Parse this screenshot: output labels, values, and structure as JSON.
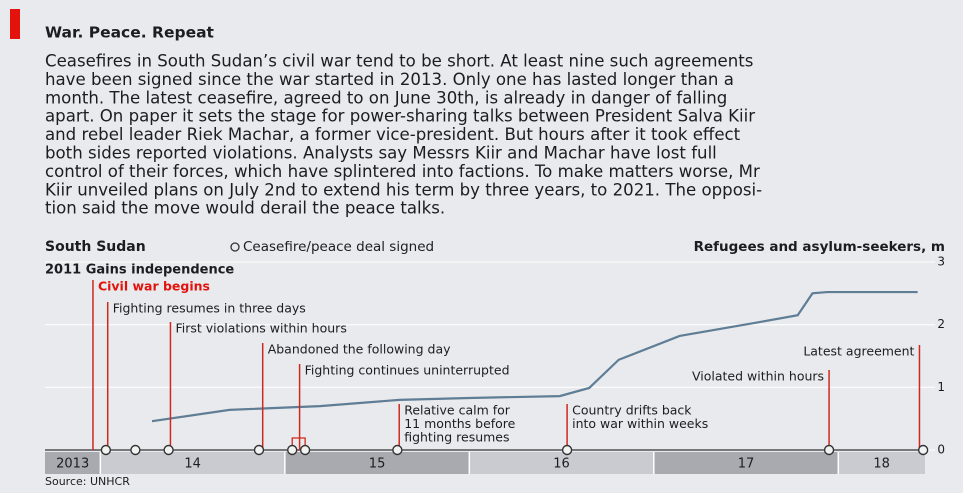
{
  "header": {
    "title": "War. Peace. Repeat",
    "text_lines": [
      "Ceasefires in South Sudan’s civil war tend to be short. At least nine such agreements",
      "have been signed since the war started in 2013. Only one has lasted longer than a",
      "month. The latest ceasefire, agreed to on June 30th, is already in danger of falling",
      "apart. On paper it sets the stage for power-sharing talks between President Salva Kiir",
      "and rebel leader Riek Machar, a former vice-president. But hours after it took effect",
      "both sides reported violations. Analysts say Messrs Kiir and Machar have lost full",
      "control of their forces, which have splintered into factions. To make matters worse, Mr",
      "Kiir unveiled plans on July 2nd to extend his term by three years, to 2021. The opposi-",
      "tion said the move would derail the peace talks."
    ]
  },
  "chart_data": {
    "type": "line",
    "title": "South Sudan",
    "legend": "Ceasefire/peace deal signed",
    "y_axis_label": "Refugees and asylum-seekers, m",
    "note": "2011 Gains independence",
    "source": "Source: UNHCR",
    "series": [
      {
        "name": "Refugees and asylum-seekers",
        "color": "#5f7d95",
        "x": [
          2014.28,
          2014.7,
          2015.19,
          2015.62,
          2016.0,
          2016.49,
          2016.65,
          2016.81,
          2017.14,
          2017.57,
          2017.78,
          2017.86,
          2017.94,
          2018.43
        ],
        "values": [
          0.46,
          0.64,
          0.7,
          0.8,
          0.83,
          0.86,
          0.99,
          1.44,
          1.82,
          2.04,
          2.15,
          2.5,
          2.52,
          2.52
        ]
      }
    ],
    "ceasefires": [
      2014.03,
      2014.19,
      2014.37,
      2014.86,
      2015.04,
      2015.11,
      2015.61,
      2016.53,
      2017.95,
      2018.46
    ],
    "annotations": [
      {
        "x": 2013.96,
        "label": [
          "Civil war begins"
        ],
        "color": "#e3120b"
      },
      {
        "x": 2014.04,
        "label": [
          "Fighting resumes in three days"
        ]
      },
      {
        "x": 2014.38,
        "label": [
          "First violations within hours"
        ]
      },
      {
        "x": 2014.88,
        "label": [
          "Abandoned the following day"
        ]
      },
      {
        "x": 2015.08,
        "label": [
          "Fighting continues uninterrupted"
        ]
      },
      {
        "x": 2015.62,
        "label": [
          "Relative calm for",
          "11 months before",
          "fighting resumes"
        ]
      },
      {
        "x": 2016.53,
        "label": [
          "Country drifts back",
          "into war within weeks"
        ]
      },
      {
        "x": 2017.95,
        "label": [
          "Violated within hours"
        ]
      },
      {
        "x": 2018.44,
        "label": [
          "Latest agreement"
        ]
      }
    ],
    "xlim": [
      2013.7,
      2018.47
    ],
    "xticks": [
      {
        "value": 2013,
        "label": "2013"
      },
      {
        "value": 2014,
        "label": "14"
      },
      {
        "value": 2015,
        "label": "15"
      },
      {
        "value": 2016,
        "label": "16"
      },
      {
        "value": 2017,
        "label": "17"
      },
      {
        "value": 2018,
        "label": "18"
      }
    ],
    "ylim": [
      0,
      3
    ],
    "yticks": [
      0,
      1,
      2,
      3
    ],
    "grid": true,
    "line_color": "#d0281d"
  }
}
